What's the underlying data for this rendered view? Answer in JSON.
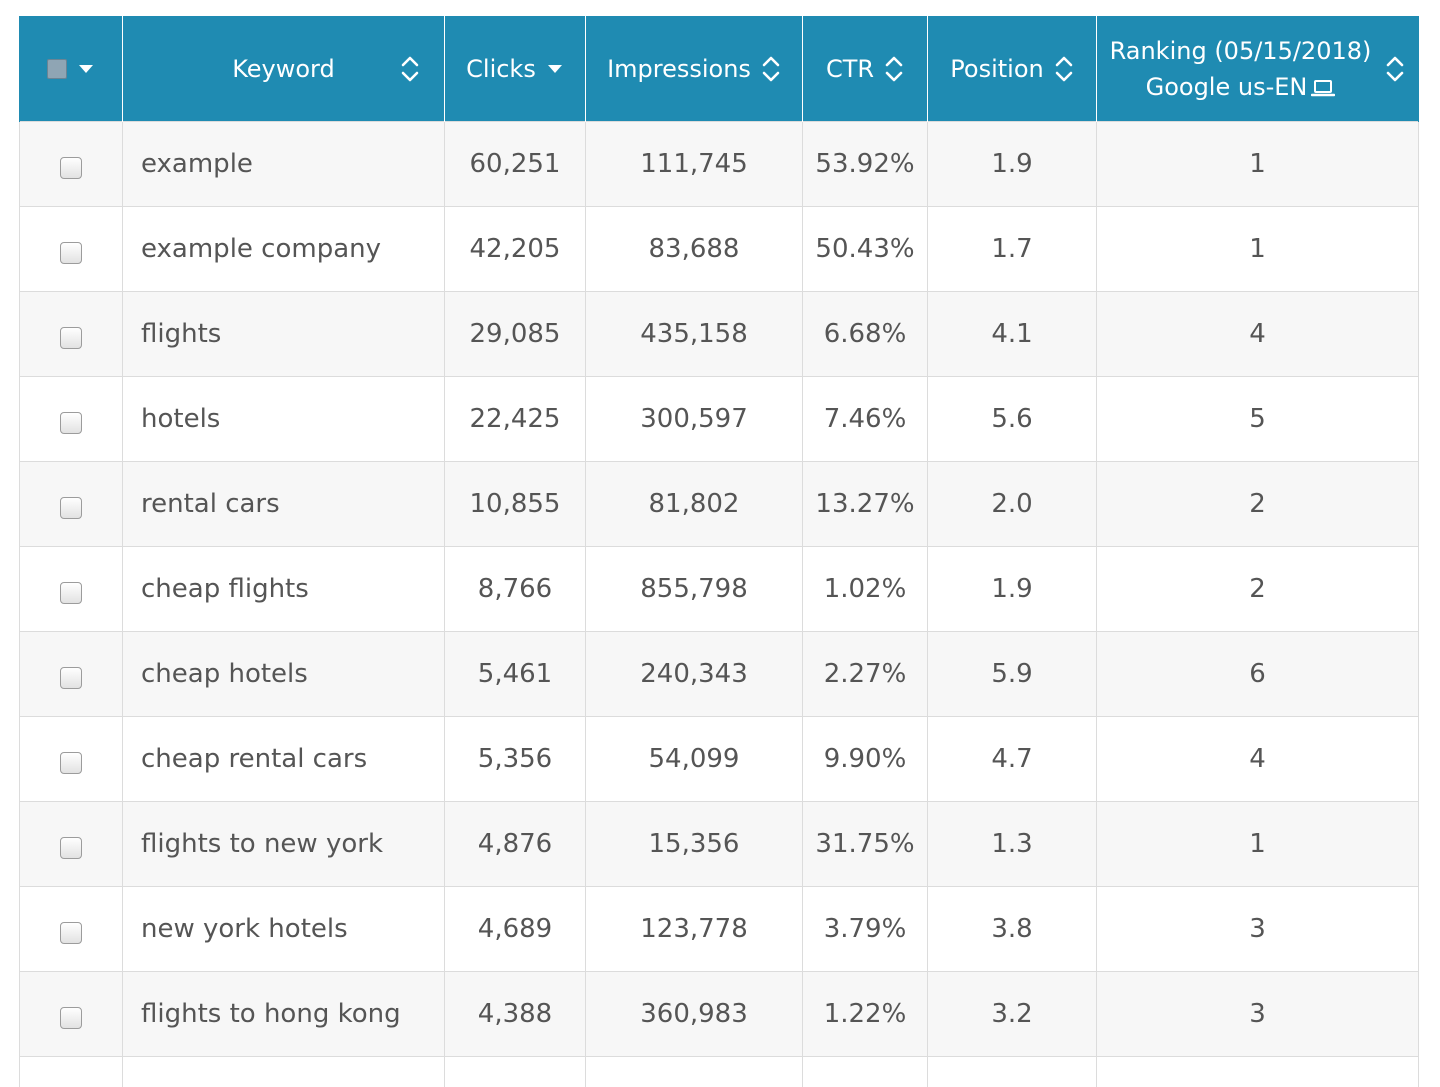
{
  "table": {
    "headers": {
      "keyword": "Keyword",
      "clicks": "Clicks",
      "impressions": "Impressions",
      "ctr": "CTR",
      "position": "Position",
      "ranking_line1": "Ranking (05/15/2018)",
      "ranking_line2": "Google us-EN"
    },
    "rows": [
      {
        "keyword": "example",
        "clicks": "60,251",
        "impressions": "111,745",
        "ctr": "53.92%",
        "position": "1.9",
        "ranking": "1"
      },
      {
        "keyword": "example company",
        "clicks": "42,205",
        "impressions": "83,688",
        "ctr": "50.43%",
        "position": "1.7",
        "ranking": "1"
      },
      {
        "keyword": "flights",
        "clicks": "29,085",
        "impressions": "435,158",
        "ctr": "6.68%",
        "position": "4.1",
        "ranking": "4"
      },
      {
        "keyword": "hotels",
        "clicks": "22,425",
        "impressions": "300,597",
        "ctr": "7.46%",
        "position": "5.6",
        "ranking": "5"
      },
      {
        "keyword": "rental cars",
        "clicks": "10,855",
        "impressions": "81,802",
        "ctr": "13.27%",
        "position": "2.0",
        "ranking": "2"
      },
      {
        "keyword": "cheap flights",
        "clicks": "8,766",
        "impressions": "855,798",
        "ctr": "1.02%",
        "position": "1.9",
        "ranking": "2"
      },
      {
        "keyword": "cheap hotels",
        "clicks": "5,461",
        "impressions": "240,343",
        "ctr": "2.27%",
        "position": "5.9",
        "ranking": "6"
      },
      {
        "keyword": "cheap rental cars",
        "clicks": "5,356",
        "impressions": "54,099",
        "ctr": "9.90%",
        "position": "4.7",
        "ranking": "4"
      },
      {
        "keyword": "flights to new york",
        "clicks": "4,876",
        "impressions": "15,356",
        "ctr": "31.75%",
        "position": "1.3",
        "ranking": "1"
      },
      {
        "keyword": "new york hotels",
        "clicks": "4,689",
        "impressions": "123,778",
        "ctr": "3.79%",
        "position": "3.8",
        "ranking": "3"
      },
      {
        "keyword": "flights to hong kong",
        "clicks": "4,388",
        "impressions": "360,983",
        "ctr": "1.22%",
        "position": "3.2",
        "ranking": "3"
      }
    ]
  },
  "icons": {
    "select_all": "checkbox-icon",
    "select_menu": "caret-down-icon",
    "sortable": "sort-icon",
    "sorted_desc": "caret-down-icon",
    "device": "laptop-icon"
  },
  "colors": {
    "header_bg": "#1f8bb2",
    "header_text": "#ffffff",
    "row_alt_bg": "#f7f7f7",
    "border": "#dcdcdc",
    "cell_text": "#555555"
  }
}
